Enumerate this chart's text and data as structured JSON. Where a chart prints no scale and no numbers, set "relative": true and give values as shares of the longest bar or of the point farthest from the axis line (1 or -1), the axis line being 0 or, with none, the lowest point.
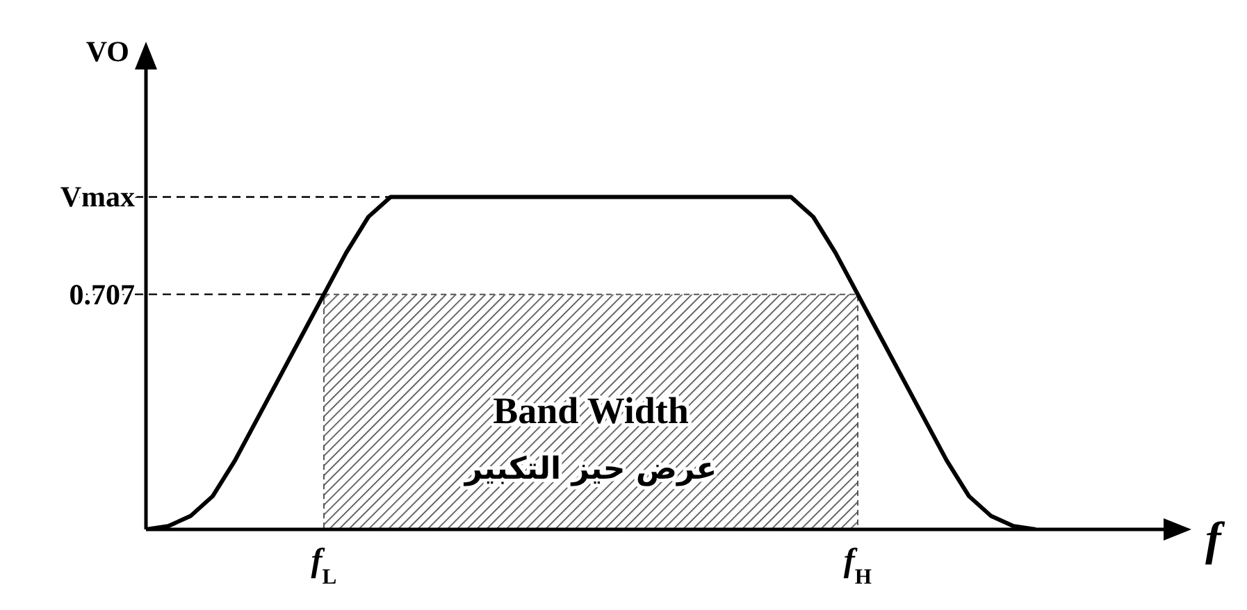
{
  "chart_data": {
    "type": "line",
    "xlabel": "f",
    "ylabel": "VO",
    "relative": true,
    "categories": [
      null,
      null,
      null,
      null,
      null,
      null,
      null,
      null,
      "f$_{L}$",
      null,
      null,
      null,
      null,
      null,
      null,
      null,
      null,
      null,
      null,
      null,
      null,
      null,
      null,
      null,
      null,
      null,
      null,
      null,
      null,
      null,
      null,
      null,
      "f$_{H}$",
      null,
      null,
      null,
      null,
      null,
      null,
      null,
      null,
      null,
      null,
      null,
      null
    ],
    "values": [
      0,
      0.01,
      0.04,
      0.1,
      0.207,
      0.332,
      0.457,
      0.582,
      0.707,
      0.832,
      0.94,
      1,
      1,
      1,
      1,
      1,
      1,
      1,
      1,
      1,
      1,
      1,
      1,
      1,
      1,
      1,
      1,
      1,
      1,
      1,
      0.94,
      0.832,
      0.707,
      0.582,
      0.457,
      0.332,
      0.207,
      0.1,
      0.04,
      0.01,
      0,
      null,
      null,
      null,
      null
    ],
    "color": "#000000",
    "ref_lines": [
      {
        "axis": "y",
        "value": 1,
        "label": "Vmax",
        "line_style": "dashed"
      },
      {
        "axis": "y",
        "value": 0.707,
        "label": "0.707",
        "line_style": "dashed"
      }
    ],
    "bands": [
      {
        "axis": "x",
        "from": "f$_{L}$",
        "to": "f$_{H}$",
        "label": "Band Width"
      }
    ],
    "annotations": [
      "عرض حيز التكبير"
    ],
    "marker": "none",
    "line_style": "solid"
  }
}
